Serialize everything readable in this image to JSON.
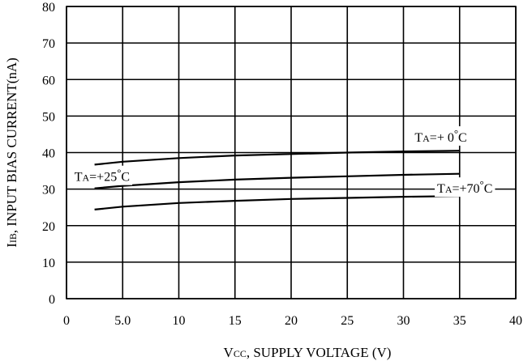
{
  "chart_data": {
    "type": "line",
    "x_axis": {
      "label_sub_main": "V",
      "label_sub": "CC",
      "label_rest": ", SUPPLY VOLTAGE (V)",
      "range": [
        0,
        40
      ],
      "ticks": [
        0,
        5,
        10,
        15,
        20,
        25,
        30,
        35,
        40
      ],
      "tick_labels": [
        "0",
        "5.0",
        "10",
        "15",
        "20",
        "25",
        "30",
        "35",
        "40"
      ]
    },
    "y_axis": {
      "label_main": "I",
      "label_sub": "IB",
      "label_rest": ", INPUT BIAS CURRENT(nA)",
      "range": [
        0,
        80
      ],
      "ticks": [
        0,
        10,
        20,
        30,
        40,
        50,
        60,
        70,
        80
      ],
      "tick_labels": [
        "0",
        "10",
        "20",
        "30",
        "40",
        "50",
        "60",
        "70",
        "80"
      ]
    },
    "grid": true,
    "series": [
      {
        "x": [
          2.5,
          5,
          10,
          15,
          20,
          25,
          30,
          35
        ],
        "y": [
          36.7,
          37.5,
          38.5,
          39.2,
          39.6,
          40.0,
          40.3,
          40.5
        ]
      },
      {
        "x": [
          2.5,
          5,
          10,
          15,
          20,
          25,
          30,
          35
        ],
        "y": [
          30.2,
          30.9,
          31.9,
          32.6,
          33.1,
          33.5,
          33.9,
          34.2
        ]
      },
      {
        "x": [
          2.5,
          5,
          10,
          15,
          20,
          25,
          30,
          35
        ],
        "y": [
          24.4,
          25.2,
          26.2,
          26.8,
          27.3,
          27.6,
          27.9,
          28.1
        ]
      }
    ],
    "annotations": [
      {
        "main": "T",
        "sub": "A",
        "rest": "=+  0",
        "deg": "°",
        "unit": "C",
        "x": 31.0,
        "y": 43.0
      },
      {
        "main": "T",
        "sub": "A",
        "rest": "=+25",
        "deg": "°",
        "unit": "C",
        "x": 0.7,
        "y": 32.2
      },
      {
        "main": "T",
        "sub": "A",
        "rest": "=+70",
        "deg": "°",
        "unit": "C",
        "x": 33.0,
        "y": 29.0
      }
    ]
  }
}
